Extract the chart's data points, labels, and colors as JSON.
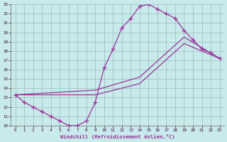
{
  "xlabel": "Windchill (Refroidissement éolien,°C)",
  "xlim": [
    -0.5,
    23.5
  ],
  "ylim": [
    10,
    23
  ],
  "xticks": [
    0,
    1,
    2,
    3,
    4,
    5,
    6,
    7,
    8,
    9,
    10,
    11,
    12,
    13,
    14,
    15,
    16,
    17,
    18,
    19,
    20,
    21,
    22,
    23
  ],
  "yticks": [
    10,
    11,
    12,
    13,
    14,
    15,
    16,
    17,
    18,
    19,
    20,
    21,
    22,
    23
  ],
  "bg_color": "#c8eaea",
  "line_color": "#993399",
  "grid_color": "#99bbbb",
  "curve_x": [
    0,
    1,
    2,
    3,
    4,
    5,
    6,
    7,
    8,
    9,
    10,
    11,
    12,
    13,
    14,
    15,
    16,
    17,
    18,
    19,
    20,
    21,
    22,
    23
  ],
  "curve_y": [
    13.3,
    12.5,
    12.0,
    11.5,
    11.0,
    10.5,
    10.0,
    10.0,
    10.5,
    12.5,
    16.2,
    18.2,
    20.5,
    21.5,
    22.8,
    23.0,
    22.5,
    22.0,
    21.5,
    20.2,
    19.2,
    18.2,
    17.8,
    17.2
  ],
  "line_upper_x": [
    0,
    9,
    14,
    19,
    23
  ],
  "line_upper_y": [
    13.3,
    13.8,
    15.2,
    19.5,
    17.2
  ],
  "line_lower_x": [
    0,
    9,
    14,
    19,
    23
  ],
  "line_lower_y": [
    13.3,
    13.3,
    14.5,
    18.8,
    17.2
  ],
  "marker_size": 4,
  "linewidth": 0.9
}
